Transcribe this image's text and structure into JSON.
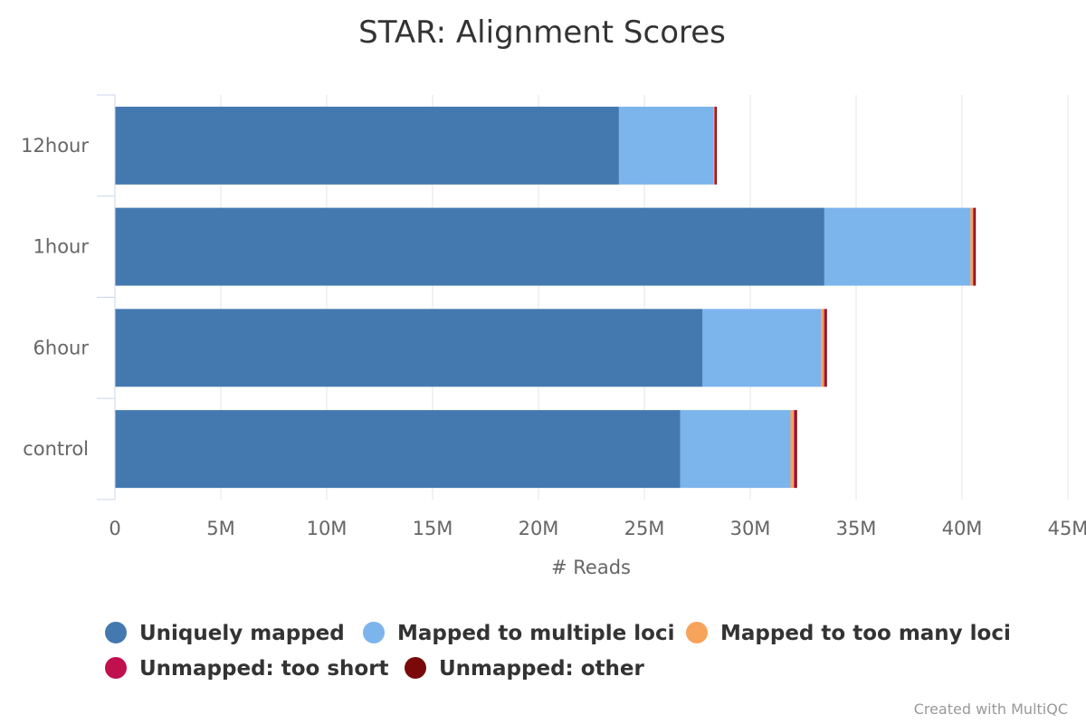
{
  "chart_data": {
    "type": "bar",
    "orientation": "horizontal",
    "stacked": true,
    "title": "STAR: Alignment Scores",
    "xlabel": "# Reads",
    "ylabel": "",
    "xlim": [
      0,
      45000000
    ],
    "x_ticks": [
      "0",
      "5M",
      "10M",
      "15M",
      "20M",
      "25M",
      "30M",
      "35M",
      "40M",
      "45M"
    ],
    "categories": [
      "12hour",
      "1hour",
      "6hour",
      "control"
    ],
    "series": [
      {
        "name": "Uniquely mapped",
        "color": "#4479b0",
        "values": [
          23800000,
          33500000,
          27750000,
          26700000
        ]
      },
      {
        "name": "Mapped to multiple loci",
        "color": "#7cb4ec",
        "values": [
          4450000,
          6900000,
          5600000,
          5200000
        ]
      },
      {
        "name": "Mapped to too many loci",
        "color": "#f7a35c",
        "values": [
          60000,
          120000,
          130000,
          160000
        ]
      },
      {
        "name": "Unmapped: too short",
        "color": "#c0104e",
        "values": [
          50000,
          60000,
          60000,
          60000
        ]
      },
      {
        "name": "Unmapped: other",
        "color": "#7a0a0a",
        "values": [
          60000,
          70000,
          80000,
          90000
        ]
      }
    ],
    "grid": true,
    "legend_position": "bottom"
  },
  "credit": "Created with MultiQC"
}
